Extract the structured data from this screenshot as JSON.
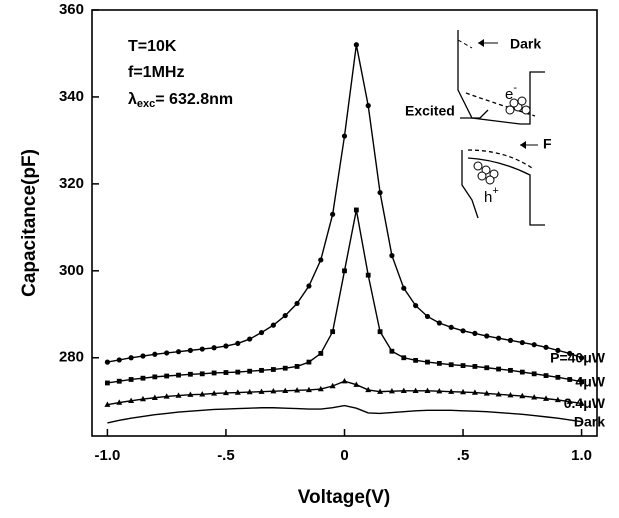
{
  "chart_data": {
    "type": "line",
    "x_label": "Voltage(V)",
    "y_label": "Capacitance(pF)",
    "annotations": [
      {
        "text": "T=10K"
      },
      {
        "text": "f=1MHz"
      },
      {
        "symbol": "λ",
        "subscript": "exc",
        "text": "= 632.8nm"
      }
    ],
    "inset": {
      "dark": "Dark",
      "excited": "Excited",
      "fermi": "F",
      "electron": {
        "base": "e",
        "sup": "-"
      },
      "hole": {
        "base": "h",
        "sup": "+"
      }
    },
    "x": [
      -1.0,
      -0.95,
      -0.9,
      -0.85,
      -0.8,
      -0.75,
      -0.7,
      -0.65,
      -0.6,
      -0.55,
      -0.5,
      -0.45,
      -0.4,
      -0.35,
      -0.3,
      -0.25,
      -0.2,
      -0.15,
      -0.1,
      -0.05,
      0,
      0.05,
      0.1,
      0.15,
      0.2,
      0.25,
      0.3,
      0.35,
      0.4,
      0.45,
      0.5,
      0.55,
      0.6,
      0.65,
      0.7,
      0.75,
      0.8,
      0.85,
      0.9,
      0.95,
      1.0
    ],
    "series": [
      {
        "name": "P=40μW",
        "color": "#000000",
        "marker": "circle",
        "values": [
          279.0,
          279.5,
          280.0,
          280.4,
          280.8,
          281.1,
          281.4,
          281.7,
          282.0,
          282.3,
          282.7,
          283.3,
          284.3,
          285.8,
          287.5,
          289.7,
          292.5,
          296.5,
          302.5,
          313,
          331,
          352,
          338,
          318,
          303.5,
          296,
          292,
          289.5,
          288,
          287,
          286.2,
          285.6,
          285.0,
          284.5,
          284.0,
          283.5,
          283.0,
          282.4,
          281.7,
          281.0,
          280.0
        ]
      },
      {
        "name": "4μW",
        "color": "#000000",
        "marker": "square",
        "values": [
          274.2,
          274.6,
          275.0,
          275.3,
          275.6,
          275.8,
          276.0,
          276.2,
          276.3,
          276.5,
          276.6,
          276.7,
          276.9,
          277.1,
          277.3,
          277.6,
          278.0,
          279.0,
          281.0,
          286,
          300,
          314,
          299,
          286,
          281.5,
          280,
          279.4,
          279.0,
          278.7,
          278.4,
          278.2,
          278.0,
          277.7,
          277.4,
          277.1,
          276.7,
          276.3,
          275.9,
          275.5,
          275.0,
          274.5
        ]
      },
      {
        "name": "0.4μW",
        "color": "#000000",
        "marker": "triangle",
        "values": [
          269.2,
          269.7,
          270.1,
          270.5,
          270.8,
          271.1,
          271.3,
          271.5,
          271.6,
          271.8,
          271.9,
          272.0,
          272.1,
          272.2,
          272.3,
          272.4,
          272.5,
          272.6,
          272.8,
          273.5,
          274.6,
          273.8,
          272.6,
          272.2,
          272.3,
          272.4,
          272.4,
          272.4,
          272.3,
          272.2,
          272.1,
          272.0,
          271.8,
          271.6,
          271.4,
          271.2,
          270.9,
          270.6,
          270.3,
          269.9,
          269.5
        ]
      },
      {
        "name": "Dark",
        "color": "#000000",
        "marker": "none",
        "values": [
          265.0,
          265.6,
          266.1,
          266.5,
          266.9,
          267.2,
          267.5,
          267.7,
          267.9,
          268.1,
          268.2,
          268.3,
          268.4,
          268.5,
          268.5,
          268.4,
          268.3,
          268.2,
          268.2,
          268.5,
          269.0,
          268.4,
          267.3,
          267.2,
          267.4,
          267.6,
          267.8,
          267.9,
          267.9,
          267.9,
          267.8,
          267.7,
          267.6,
          267.4,
          267.2,
          267.0,
          266.7,
          266.4,
          266.1,
          265.7,
          265.3
        ]
      }
    ],
    "xlim": [
      -1.065,
      1.065
    ],
    "xticks": [
      {
        "value": -1,
        "label": "-1.0"
      },
      {
        "value": -0.5,
        "label": "-.5"
      },
      0,
      {
        "value": 0.5,
        "label": ".5"
      },
      {
        "value": 1,
        "label": "1.0"
      }
    ],
    "ylim": [
      262,
      360
    ],
    "yticks": [
      280,
      300,
      320,
      340,
      360
    ],
    "grid": false
  }
}
